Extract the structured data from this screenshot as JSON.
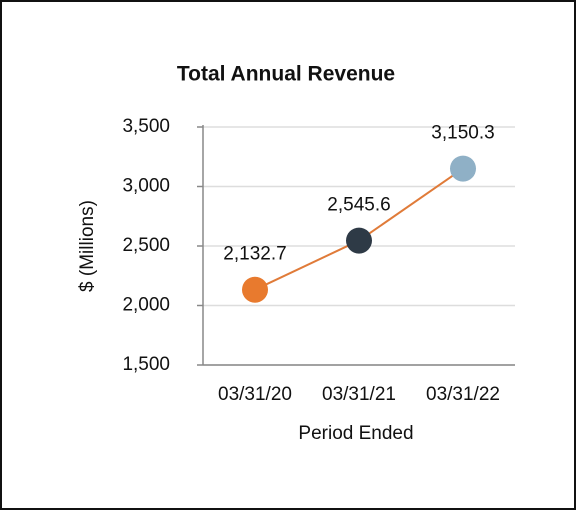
{
  "chart_data": {
    "type": "line",
    "title": "Total Annual Revenue",
    "x_label": "Period Ended",
    "y_label": "$ (Millions)",
    "categories": [
      "03/31/20",
      "03/31/21",
      "03/31/22"
    ],
    "values": [
      2132.7,
      2545.6,
      3150.3
    ],
    "value_labels": [
      "2,132.7",
      "2,545.6",
      "3,150.3"
    ],
    "line_color": "#e07b39",
    "marker_colors": [
      "#e87a2e",
      "#2e3a46",
      "#8fb0c6"
    ],
    "ylim": [
      1500,
      3500
    ],
    "yticks": [
      {
        "value": 1500,
        "label": "1,500"
      },
      {
        "value": 2000,
        "label": "2,000"
      },
      {
        "value": 2500,
        "label": "2,500"
      },
      {
        "value": 3000,
        "label": "3,000"
      },
      {
        "value": 3500,
        "label": "3,500"
      }
    ],
    "grid": true
  }
}
